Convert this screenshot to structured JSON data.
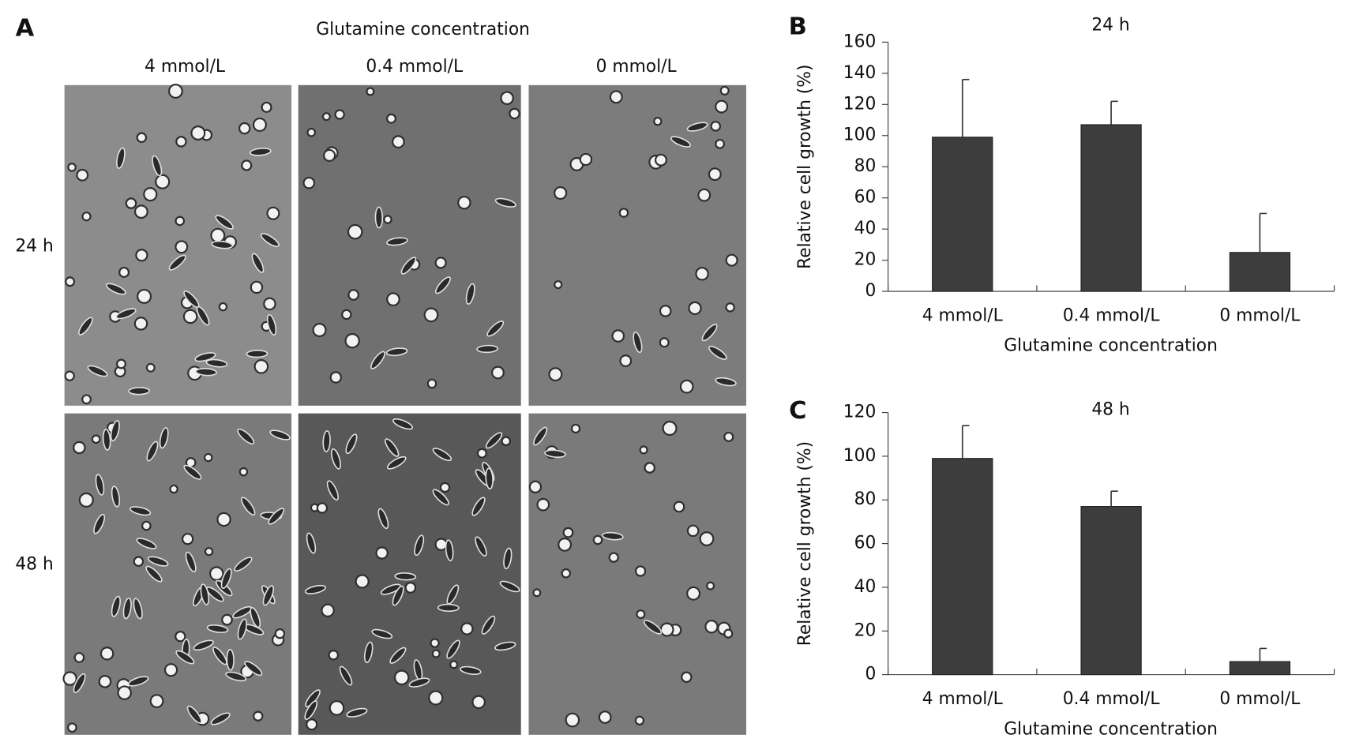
{
  "panel_a": {
    "label": "A",
    "title": "Glutamine concentration",
    "columns": [
      "4 mmol/L",
      "0.4 mmol/L",
      "0 mmol/L"
    ],
    "rows": [
      "24 h",
      "48 h"
    ]
  },
  "chart_data": [
    {
      "type": "bar",
      "panel": "B",
      "title": "24 h",
      "y_label": "Relative cell growth (%)",
      "x_label": "Glutamine concentration",
      "categories": [
        "4 mmol/L",
        "0.4 mmol/L",
        "0 mmol/L"
      ],
      "values": [
        99,
        107,
        25
      ],
      "errors": [
        37,
        15,
        25
      ],
      "color": "#3d3d3d",
      "ylim": [
        0,
        160
      ],
      "yticks": [
        0,
        20,
        40,
        60,
        80,
        100,
        120,
        140,
        160
      ]
    },
    {
      "type": "bar",
      "panel": "C",
      "title": "48 h",
      "y_label": "Relative cell growth (%)",
      "x_label": "Glutamine concentration",
      "categories": [
        "4 mmol/L",
        "0.4 mmol/L",
        "0 mmol/L"
      ],
      "values": [
        99,
        77,
        6
      ],
      "errors": [
        15,
        7,
        6
      ],
      "color": "#3d3d3d",
      "ylim": [
        0,
        120
      ],
      "yticks": [
        0,
        20,
        40,
        60,
        80,
        100,
        120
      ]
    }
  ]
}
